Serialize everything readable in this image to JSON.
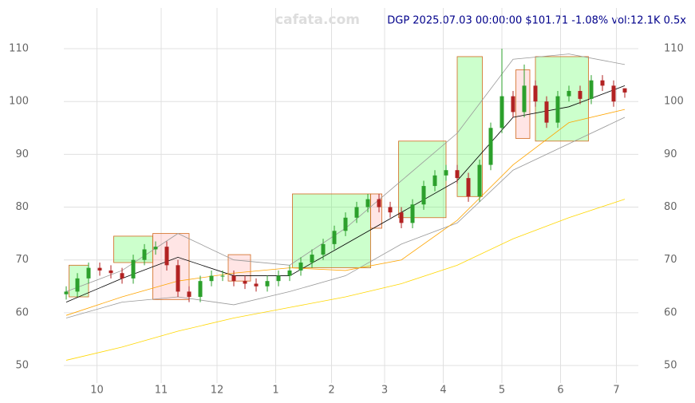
{
  "chart_data": {
    "type": "candlestick",
    "title": "DGP 2025.07.03 00:00:00 $101.71 -1.08% vol:12.1K 0.5x",
    "watermark": "cafata.com",
    "grid": true,
    "up_color": "#2ca02c",
    "down_color": "#b22222",
    "xlim": [
      -9,
      211
    ],
    "ylim": [
      47,
      117
    ],
    "yticks": [
      50,
      60,
      70,
      80,
      90,
      100,
      110
    ],
    "xticks": [
      {
        "value": 11,
        "label": "10"
      },
      {
        "value": 34,
        "label": "11"
      },
      {
        "value": 54,
        "label": "12"
      },
      {
        "value": 75,
        "label": "1"
      },
      {
        "value": 95,
        "label": "2"
      },
      {
        "value": 114,
        "label": "3"
      },
      {
        "value": 135,
        "label": "4"
      },
      {
        "value": 156,
        "label": "5"
      },
      {
        "value": 177,
        "label": "6"
      },
      {
        "value": 197,
        "label": "7"
      }
    ],
    "x": [
      0,
      4,
      8,
      12,
      16,
      20,
      24,
      28,
      32,
      36,
      40,
      44,
      48,
      52,
      56,
      60,
      64,
      68,
      72,
      76,
      80,
      84,
      88,
      92,
      96,
      100,
      104,
      108,
      112,
      116,
      120,
      124,
      128,
      132,
      136,
      140,
      144,
      148,
      152,
      156,
      160,
      164,
      168,
      172,
      176,
      180,
      184,
      188,
      192,
      196,
      200
    ],
    "open": [
      63.5,
      64,
      66.5,
      68.5,
      68,
      67.5,
      66.5,
      70,
      72,
      72.5,
      69,
      64,
      63,
      66,
      67,
      67,
      66,
      65.5,
      65,
      66,
      67,
      68,
      69.5,
      71,
      73,
      75.5,
      78,
      80,
      81.5,
      80,
      79,
      77,
      80.5,
      84,
      86,
      87,
      85.5,
      82,
      88,
      95,
      101,
      98,
      103,
      100,
      96,
      101,
      102,
      100.5,
      104,
      103,
      102.5
    ],
    "high": [
      65,
      67.5,
      69.5,
      69.5,
      69,
      68.5,
      71,
      73,
      73.5,
      73.5,
      70,
      65,
      67,
      68,
      68,
      68,
      67,
      66.5,
      67,
      68,
      69,
      70.5,
      72,
      74,
      76.5,
      79,
      81,
      82.5,
      82.5,
      81,
      80,
      81.5,
      85,
      87,
      88,
      88,
      86.5,
      89,
      96,
      110,
      102,
      107,
      104,
      101,
      102,
      103,
      103,
      105,
      105,
      104,
      102.5
    ],
    "low": [
      62.5,
      63,
      65.5,
      67,
      66.5,
      65.5,
      65.5,
      69,
      71,
      68,
      63,
      62,
      62,
      65,
      66,
      65,
      64.5,
      64,
      64,
      65,
      66,
      67,
      68.5,
      70,
      72,
      74.5,
      77,
      79,
      79,
      78,
      76,
      76,
      79.5,
      83,
      85,
      84.5,
      81,
      81,
      87,
      94,
      97,
      97,
      99,
      95,
      95,
      100,
      99.5,
      99.5,
      102,
      99,
      100.7
    ],
    "close": [
      64,
      66.5,
      68.5,
      68,
      67.5,
      66.5,
      70,
      72,
      72.5,
      69,
      64,
      63,
      66,
      67,
      67,
      66,
      65.5,
      65,
      66,
      67,
      68,
      69.5,
      71,
      73,
      75.5,
      78,
      80,
      81.5,
      80,
      79,
      77,
      80.5,
      84,
      86,
      87,
      85.5,
      82,
      88,
      95,
      101,
      98,
      103,
      100,
      96,
      101,
      102,
      100.5,
      104,
      103,
      100,
      101.71
    ],
    "lines": [
      {
        "color": "#999999",
        "x": [
          0,
          20,
          40,
          60,
          80,
          100,
          120,
          140,
          160,
          180,
          200
        ],
        "values": [
          64,
          68,
          75,
          70,
          69,
          76,
          85,
          94,
          108,
          109,
          107
        ]
      },
      {
        "color": "#999999",
        "x": [
          0,
          20,
          40,
          60,
          80,
          100,
          120,
          140,
          160,
          180,
          200
        ],
        "values": [
          59,
          62,
          63,
          61.5,
          64,
          67,
          73,
          77,
          87,
          92,
          97
        ]
      },
      {
        "color": "#000000",
        "x": [
          0,
          20,
          40,
          60,
          80,
          100,
          120,
          140,
          160,
          180,
          200
        ],
        "values": [
          62,
          66.5,
          70.5,
          67,
          67,
          73,
          79,
          85,
          97,
          99,
          103
        ]
      },
      {
        "color": "#ffa500",
        "x": [
          0,
          20,
          40,
          60,
          80,
          100,
          120,
          140,
          160,
          180,
          200
        ],
        "values": [
          59.5,
          63,
          66,
          67.5,
          68.5,
          68,
          70,
          77.5,
          88,
          96,
          98.5
        ]
      },
      {
        "color": "#ffd700",
        "x": [
          0,
          20,
          40,
          60,
          80,
          100,
          120,
          140,
          160,
          180,
          200
        ],
        "values": [
          51,
          53.5,
          56.5,
          59,
          61,
          63,
          65.5,
          69,
          74,
          78,
          81.5
        ]
      }
    ],
    "zones": [
      {
        "color": "#33ff33",
        "x": [
          1,
          8
        ],
        "y": [
          63,
          69
        ]
      },
      {
        "color": "#33ff33",
        "x": [
          17,
          31
        ],
        "y": [
          69.5,
          74.5
        ]
      },
      {
        "color": "#ff9999",
        "x": [
          31,
          44
        ],
        "y": [
          62.5,
          75
        ]
      },
      {
        "color": "#ff9999",
        "x": [
          58,
          66
        ],
        "y": [
          66,
          71
        ]
      },
      {
        "color": "#33ff33",
        "x": [
          81,
          109
        ],
        "y": [
          68.5,
          82.5
        ]
      },
      {
        "color": "#ff9999",
        "x": [
          109,
          113
        ],
        "y": [
          76,
          82.5
        ]
      },
      {
        "color": "#33ff33",
        "x": [
          119,
          136
        ],
        "y": [
          78,
          92.5
        ]
      },
      {
        "color": "#33ff33",
        "x": [
          140,
          149
        ],
        "y": [
          82,
          108.5
        ]
      },
      {
        "color": "#ff9999",
        "x": [
          161,
          166
        ],
        "y": [
          93,
          106
        ]
      },
      {
        "color": "#33ff33",
        "x": [
          168,
          187
        ],
        "y": [
          92.5,
          108.5
        ]
      }
    ]
  }
}
